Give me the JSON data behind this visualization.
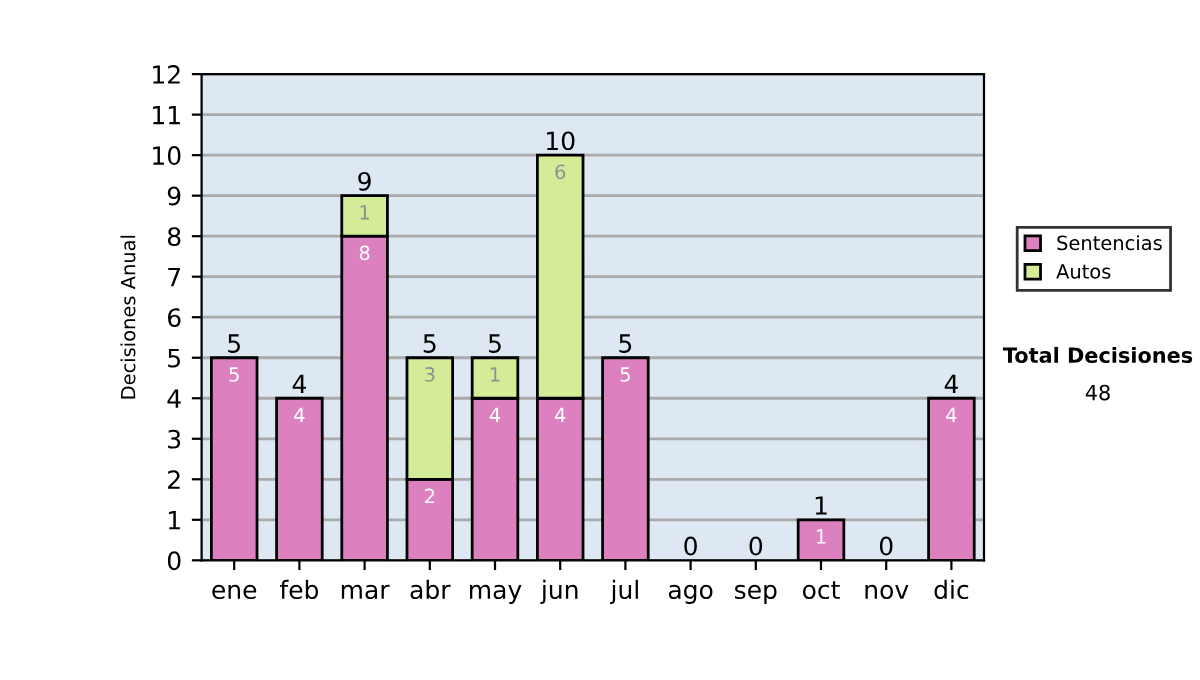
{
  "chart_data": {
    "type": "bar",
    "stacked": true,
    "ylabel": "Decisiones Anual",
    "categories": [
      "ene",
      "feb",
      "mar",
      "abr",
      "may",
      "jun",
      "jul",
      "ago",
      "sep",
      "oct",
      "nov",
      "dic"
    ],
    "series": [
      {
        "name": "Sentencias",
        "color": "#dd80c0",
        "values": [
          5,
          4,
          8,
          2,
          4,
          4,
          5,
          0,
          0,
          1,
          0,
          4
        ],
        "value_labels": [
          "5",
          "4",
          "8",
          "2",
          "4",
          "4",
          "5",
          null,
          null,
          "1",
          null,
          "4"
        ]
      },
      {
        "name": "Autos",
        "color": "#d4eb98",
        "values": [
          0,
          0,
          1,
          3,
          1,
          6,
          0,
          0,
          0,
          0,
          0,
          0
        ],
        "value_labels": [
          null,
          null,
          "1",
          "3",
          "1",
          "6",
          null,
          null,
          null,
          null,
          null,
          null
        ]
      }
    ],
    "totals": [
      "5",
      "4",
      "9",
      "5",
      "5",
      "10",
      "5",
      "0",
      "0",
      "1",
      "0",
      "4"
    ],
    "ylim": [
      0,
      12
    ],
    "yticks": [
      0,
      1,
      2,
      3,
      4,
      5,
      6,
      7,
      8,
      9,
      10,
      11,
      12
    ],
    "grid": "y",
    "legend": "right",
    "annotations": [
      "Total Decisiones",
      "48"
    ]
  }
}
